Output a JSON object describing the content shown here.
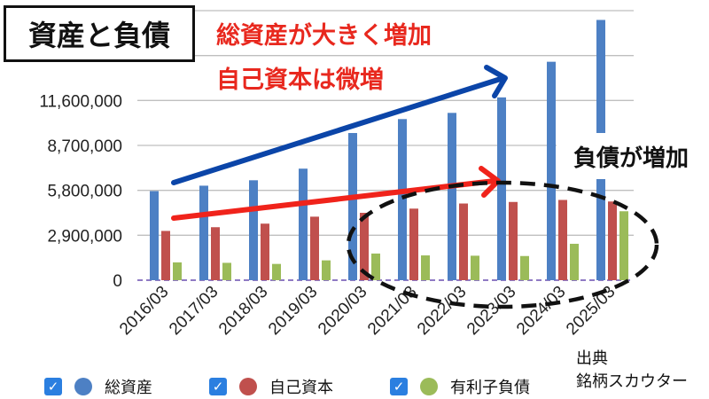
{
  "title": "資産と負債",
  "annotations": {
    "headline_1": "総資産が大きく増加",
    "headline_2": "自己資本は微増",
    "right_label": "負債が増加"
  },
  "source": {
    "line1": "出典",
    "line2": "銘柄スカウター"
  },
  "legend": [
    {
      "label": "総資産",
      "color": "#4d80c4",
      "checked": true
    },
    {
      "label": "自己資本",
      "color": "#c0504d",
      "checked": true
    },
    {
      "label": "有利子負債",
      "color": "#9bbb59",
      "checked": true
    }
  ],
  "colors": {
    "arrow_blue": "#0b45a8",
    "arrow_red": "#f0231b",
    "ellipse": "#111111",
    "checkbox": "#2b7fe0"
  },
  "chart_data": {
    "type": "bar",
    "categories": [
      "2016/03",
      "2017/03",
      "2018/03",
      "2019/03",
      "2020/03",
      "2021/03",
      "2022/03",
      "2023/03",
      "2024/03",
      "2025/03"
    ],
    "y_ticks": [
      "0",
      "2,900,000",
      "5,800,000",
      "8,700,000",
      "11,600,000"
    ],
    "ylim": [
      0,
      17400000
    ],
    "grid": true,
    "series": [
      {
        "name": "総資産",
        "color": "#4d80c4",
        "values": [
          5750000,
          6100000,
          6450000,
          7200000,
          9500000,
          10400000,
          10800000,
          11800000,
          14100000,
          16800000
        ]
      },
      {
        "name": "自己資本",
        "color": "#c0504d",
        "values": [
          3180000,
          3420000,
          3650000,
          4100000,
          4350000,
          4620000,
          4950000,
          5050000,
          5180000,
          5080000
        ]
      },
      {
        "name": "有利子負債",
        "color": "#9bbb59",
        "values": [
          1150000,
          1120000,
          1050000,
          1280000,
          1720000,
          1600000,
          1580000,
          1560000,
          2350000,
          4450000
        ]
      }
    ]
  }
}
